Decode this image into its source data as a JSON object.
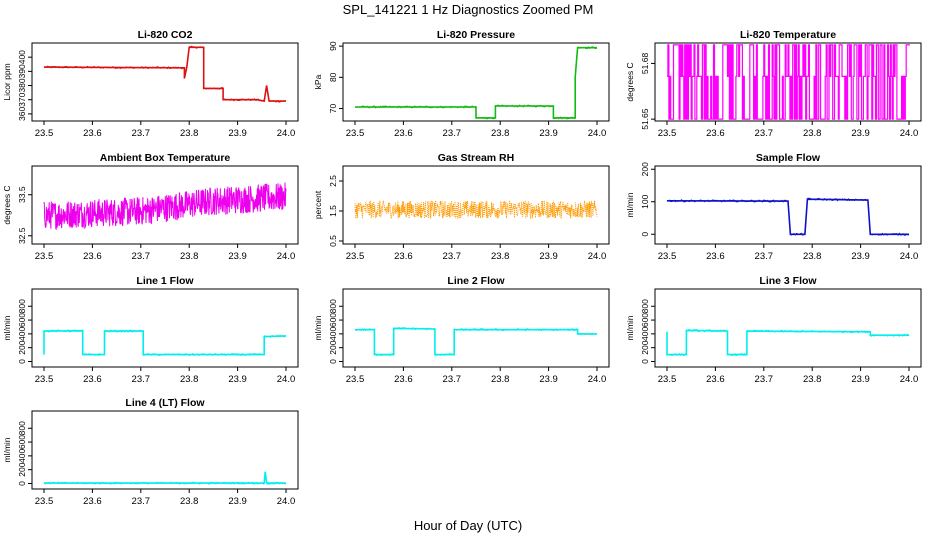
{
  "main_title": "SPL_141221  1 Hz Diagnostics Zoomed PM",
  "shared_xlabel": "Hour of Day (UTC)",
  "chart_data": [
    {
      "type": "line",
      "title": "Li-820 CO2",
      "ylabel": "Licor ppm",
      "color": "#dd1111",
      "xlim": [
        23.5,
        24.0
      ],
      "xticks": [
        "23.5",
        "23.6",
        "23.7",
        "23.8",
        "23.9",
        "24.0"
      ],
      "ylim": [
        355,
        410
      ],
      "yticks": [
        360,
        370,
        380,
        390,
        400
      ],
      "x": [
        23.5,
        23.79,
        23.79,
        23.795,
        23.8,
        23.82,
        23.83,
        23.83,
        23.87,
        23.87,
        23.9,
        23.94,
        23.955,
        23.96,
        23.965,
        24.0
      ],
      "values": [
        393,
        392.5,
        385,
        393,
        407,
        407,
        407,
        378,
        378,
        370,
        370,
        370,
        369,
        380,
        369,
        369
      ]
    },
    {
      "type": "line",
      "title": "Li-820 Pressure",
      "ylabel": "kPa",
      "color": "#11bb11",
      "xlim": [
        23.5,
        24.0
      ],
      "xticks": [
        "23.5",
        "23.6",
        "23.7",
        "23.8",
        "23.9",
        "24.0"
      ],
      "ylim": [
        66,
        91
      ],
      "yticks": [
        70,
        80,
        90
      ],
      "x": [
        23.5,
        23.75,
        23.75,
        23.79,
        23.79,
        23.91,
        23.91,
        23.955,
        23.955,
        23.96,
        23.965,
        24.0
      ],
      "values": [
        70.5,
        70.5,
        67,
        67,
        70.8,
        70.8,
        67,
        67,
        80,
        89.5,
        89.5,
        89.5
      ]
    },
    {
      "type": "line",
      "title": "Li-820 Temperature",
      "ylabel": "degrees C",
      "color": "#ff00ff",
      "xlim": [
        23.5,
        24.0
      ],
      "xticks": [
        "23.5",
        "23.6",
        "23.7",
        "23.8",
        "23.9",
        "24.0"
      ],
      "ylim": [
        51.649,
        51.691
      ],
      "yticks": [
        51.65,
        51.68
      ],
      "pattern": "square",
      "levels": [
        51.65,
        51.673,
        51.69
      ]
    },
    {
      "type": "line",
      "title": "Ambient Box Temperature",
      "ylabel": "degrees C",
      "color": "#ee00ee",
      "xlim": [
        23.5,
        24.0
      ],
      "xticks": [
        "23.5",
        "23.6",
        "23.7",
        "23.8",
        "23.9",
        "24.0"
      ],
      "ylim": [
        32.3,
        34.2
      ],
      "yticks": [
        32.5,
        33.5
      ],
      "pattern": "noise",
      "trend": [
        [
          23.5,
          33.0
        ],
        [
          23.7,
          33.1
        ],
        [
          23.85,
          33.35
        ],
        [
          24.0,
          33.45
        ]
      ],
      "amplitude": 0.35
    },
    {
      "type": "scatter",
      "title": "Gas Stream RH",
      "ylabel": "percent",
      "color": "#ff9900",
      "xlim": [
        23.5,
        24.0
      ],
      "xticks": [
        "23.5",
        "23.6",
        "23.7",
        "23.8",
        "23.9",
        "24.0"
      ],
      "ylim": [
        0.4,
        3.0
      ],
      "yticks": [
        0.5,
        1.5,
        2.5
      ],
      "pattern": "noise",
      "trend": [
        [
          23.5,
          1.55
        ],
        [
          24.0,
          1.55
        ]
      ],
      "amplitude": 0.3
    },
    {
      "type": "line",
      "title": "Sample Flow",
      "ylabel": "ml/min",
      "color": "#1111cc",
      "xlim": [
        23.5,
        24.0
      ],
      "xticks": [
        "23.5",
        "23.6",
        "23.7",
        "23.8",
        "23.9",
        "24.0"
      ],
      "ylim": [
        -30,
        210
      ],
      "yticks": [
        0,
        100,
        200
      ],
      "x": [
        23.5,
        23.75,
        23.755,
        23.785,
        23.79,
        23.915,
        23.92,
        24.0
      ],
      "values": [
        103,
        102,
        0,
        0,
        108,
        105,
        0,
        0
      ]
    },
    {
      "type": "line",
      "title": "Line 1 Flow",
      "ylabel": "ml/min",
      "color": "#00eeee",
      "xlim": [
        23.5,
        24.0
      ],
      "xticks": [
        "23.5",
        "23.6",
        "23.7",
        "23.8",
        "23.9",
        "24.0"
      ],
      "ylim": [
        -80,
        1050
      ],
      "yticks": [
        0,
        200,
        400,
        600,
        800
      ],
      "x": [
        23.5,
        23.5,
        23.58,
        23.58,
        23.625,
        23.625,
        23.705,
        23.705,
        23.955,
        23.955,
        24.0
      ],
      "values": [
        100,
        440,
        445,
        100,
        100,
        440,
        440,
        100,
        100,
        360,
        370
      ]
    },
    {
      "type": "line",
      "title": "Line 2 Flow",
      "ylabel": "ml/min",
      "color": "#00eeee",
      "xlim": [
        23.5,
        24.0
      ],
      "xticks": [
        "23.5",
        "23.6",
        "23.7",
        "23.8",
        "23.9",
        "24.0"
      ],
      "ylim": [
        -80,
        1050
      ],
      "yticks": [
        0,
        200,
        400,
        600,
        800
      ],
      "x": [
        23.5,
        23.54,
        23.54,
        23.58,
        23.58,
        23.665,
        23.665,
        23.705,
        23.705,
        23.96,
        23.96,
        24.0
      ],
      "values": [
        460,
        460,
        100,
        100,
        480,
        470,
        100,
        100,
        460,
        460,
        400,
        400
      ]
    },
    {
      "type": "line",
      "title": "Line 3 Flow",
      "ylabel": "ml/min",
      "color": "#00eeee",
      "xlim": [
        23.5,
        24.0
      ],
      "xticks": [
        "23.5",
        "23.6",
        "23.7",
        "23.8",
        "23.9",
        "24.0"
      ],
      "ylim": [
        -80,
        1050
      ],
      "yticks": [
        0,
        200,
        400,
        600,
        800
      ],
      "x": [
        23.5,
        23.5,
        23.54,
        23.54,
        23.625,
        23.625,
        23.665,
        23.665,
        23.92,
        23.92,
        24.0
      ],
      "values": [
        430,
        100,
        100,
        450,
        440,
        100,
        100,
        440,
        430,
        380,
        380
      ]
    },
    {
      "type": "line",
      "title": "Line 4 (LT) Flow",
      "ylabel": "ml/min",
      "color": "#00eeee",
      "xlim": [
        23.5,
        24.0
      ],
      "xticks": [
        "23.5",
        "23.6",
        "23.7",
        "23.8",
        "23.9",
        "24.0"
      ],
      "ylim": [
        -80,
        1050
      ],
      "yticks": [
        0,
        200,
        400,
        600,
        800
      ],
      "x": [
        23.5,
        23.955,
        23.957,
        23.96,
        23.962,
        24.0
      ],
      "values": [
        5,
        5,
        170,
        10,
        5,
        5
      ]
    }
  ]
}
